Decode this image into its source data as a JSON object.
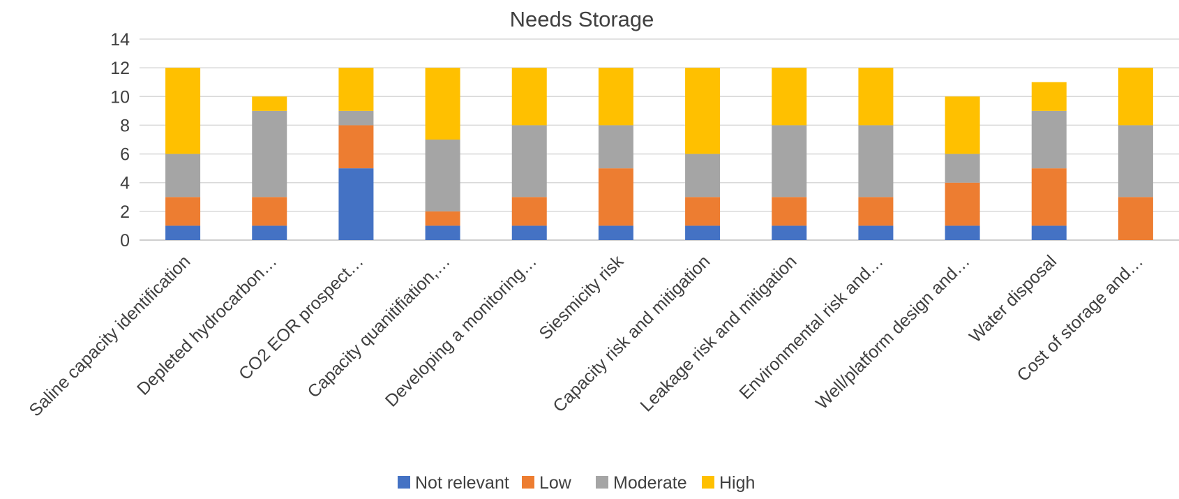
{
  "chart_data": {
    "type": "bar",
    "stacked": true,
    "title": "Needs Storage",
    "xlabel": "",
    "ylabel": "",
    "ylim": [
      0,
      14
    ],
    "yticks": [
      0,
      2,
      4,
      6,
      8,
      10,
      12,
      14
    ],
    "grid": true,
    "legend_position": "bottom",
    "categories": [
      "Saline capacity identification",
      "Depleted hydrocarbon…",
      "CO2 EOR prospect…",
      "Capacity quanitifiation,…",
      "Developing  a  monitoring…",
      "Siesmicity risk",
      "Capacity risk and mitigation",
      "Leakage risk and mitigation",
      "Environmental risk and…",
      "Well/platform design and…",
      "Water disposal",
      "Cost of storage and…"
    ],
    "series": [
      {
        "name": "Not relevant",
        "color": "#4472C4",
        "values": [
          1,
          1,
          5,
          1,
          1,
          1,
          1,
          1,
          1,
          1,
          1,
          0
        ]
      },
      {
        "name": "Low",
        "color": "#ED7D31",
        "values": [
          2,
          2,
          3,
          1,
          2,
          4,
          2,
          2,
          2,
          3,
          4,
          3
        ]
      },
      {
        "name": "Moderate",
        "color": "#A5A5A5",
        "values": [
          3,
          6,
          1,
          5,
          5,
          3,
          3,
          5,
          5,
          2,
          4,
          5
        ]
      },
      {
        "name": "High",
        "color": "#FFC000",
        "values": [
          6,
          1,
          3,
          5,
          4,
          4,
          6,
          4,
          4,
          4,
          2,
          4
        ]
      }
    ]
  }
}
